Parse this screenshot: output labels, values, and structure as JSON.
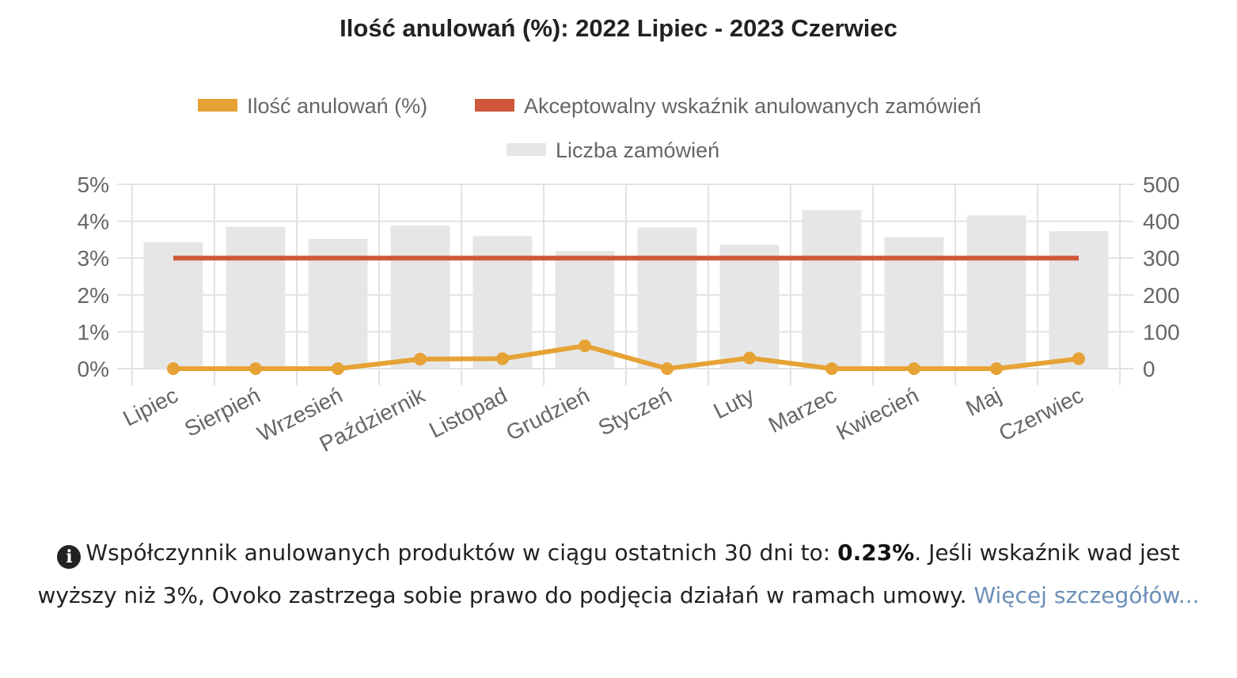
{
  "chart_data": {
    "title": "Ilość anulowań (%): 2022 Lipiec - 2023 Czerwiec",
    "type": "bar+line",
    "categories": [
      "Lipiec",
      "Sierpień",
      "Wrzesień",
      "Październik",
      "Listopad",
      "Grudzień",
      "Styczeń",
      "Luty",
      "Marzec",
      "Kwiecień",
      "Maj",
      "Czerwiec"
    ],
    "series": [
      {
        "name": "Ilość anulowań (%)",
        "type": "line",
        "axis": "left",
        "color": "#e6a234",
        "values": [
          0.0,
          0.0,
          0.0,
          0.26,
          0.27,
          0.62,
          0.0,
          0.29,
          0.0,
          0.0,
          0.0,
          0.27
        ]
      },
      {
        "name": "Akceptowalny wskaźnik anulowanych zamówień",
        "type": "line",
        "axis": "left",
        "color": "#cf573b",
        "values": [
          3,
          3,
          3,
          3,
          3,
          3,
          3,
          3,
          3,
          3,
          3,
          3
        ]
      },
      {
        "name": "Liczba zamówień",
        "type": "bar",
        "axis": "right",
        "color": "#e6e6e6",
        "values": [
          343,
          385,
          352,
          388,
          360,
          319,
          383,
          336,
          430,
          357,
          416,
          373
        ]
      }
    ],
    "y_left": {
      "ticks": [
        "0%",
        "1%",
        "2%",
        "3%",
        "4%",
        "5%"
      ],
      "range": [
        0,
        5
      ]
    },
    "y_right": {
      "ticks": [
        "0",
        "100",
        "200",
        "300",
        "400",
        "500"
      ],
      "range": [
        0,
        500
      ]
    },
    "legend": "top",
    "grid": true
  },
  "info": {
    "icon": "info-circle-icon",
    "text_before": "Współczynnik anulowanych produktów w ciągu ostatnich 30 dni to: ",
    "value": "0.23%",
    "text_after": ". Jeśli wskaźnik wad jest wyższy niż 3%, Ovoko zastrzega sobie prawo do podjęcia działań w ramach umowy. ",
    "link": "Więcej szczegółów..."
  }
}
